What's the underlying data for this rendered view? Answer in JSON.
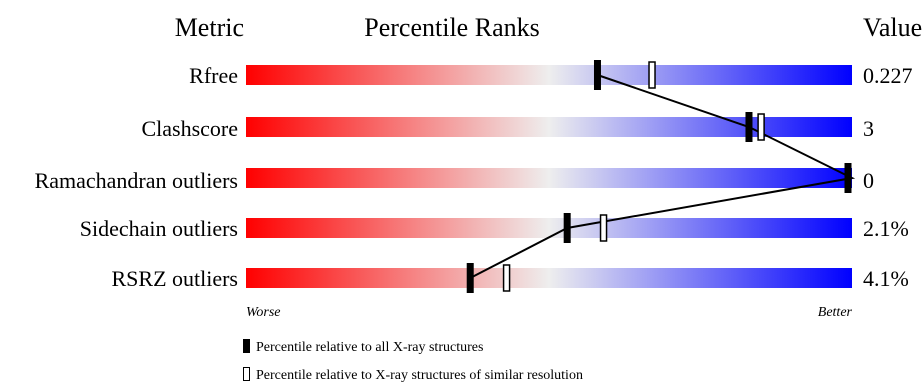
{
  "header": {
    "metric": "Metric",
    "ranks": "Percentile Ranks",
    "value": "Value"
  },
  "scale": {
    "worse": "Worse",
    "better": "Better"
  },
  "legend": {
    "all_structures": "Percentile relative to all X-ray structures",
    "similar_resolution": "Percentile relative to X-ray structures of similar resolution"
  },
  "colors": {
    "worse": "#ff0000",
    "middle": "#eeeeee",
    "better": "#0000ff"
  },
  "chart_data": {
    "type": "bar",
    "categories": [
      "Rfree",
      "Clashscore",
      "Ramachandran outliers",
      "Sidechain outliers",
      "RSRZ outliers"
    ],
    "values_display": [
      "0.227",
      "3",
      "0",
      "2.1%",
      "4.1%"
    ],
    "series": [
      {
        "name": "Percentile relative to all X-ray structures",
        "values": [
          58,
          83,
          100,
          53,
          37
        ]
      },
      {
        "name": "Percentile relative to X-ray structures of similar resolution",
        "values": [
          67,
          85,
          null,
          59,
          43
        ]
      }
    ],
    "xlim": [
      0,
      100
    ],
    "grid": false
  }
}
